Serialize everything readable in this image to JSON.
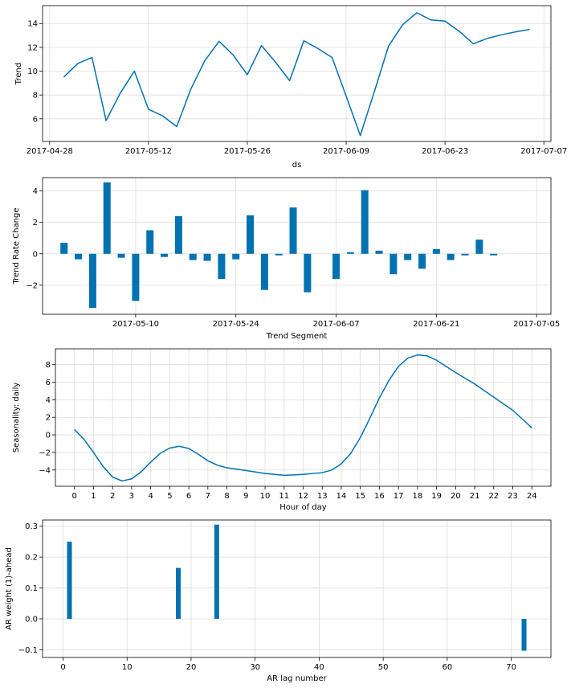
{
  "colors": {
    "series": "#0072b2",
    "grid": "#dcdcdc",
    "frame": "#000000"
  },
  "chart_data": [
    {
      "type": "line",
      "xlabel": "ds",
      "ylabel": "Trend",
      "x_is_date": true,
      "xlim": [
        "2017-04-27",
        "2017-07-08"
      ],
      "ylim": [
        4.1,
        15.5
      ],
      "xticks": [
        "2017-04-28",
        "2017-05-12",
        "2017-05-26",
        "2017-06-09",
        "2017-06-23",
        "2017-07-07"
      ],
      "xticklabels": [
        "2017-04-28",
        "2017-05-12",
        "2017-05-26",
        "2017-06-09",
        "2017-06-23",
        "2017-07-07"
      ],
      "yticks": [
        6,
        8,
        10,
        12,
        14
      ],
      "yticklabels": [
        "6",
        "8",
        "10",
        "12",
        "14"
      ],
      "grid": true,
      "series": [
        {
          "x": [
            "2017-04-30",
            "2017-05-02",
            "2017-05-04",
            "2017-05-06",
            "2017-05-08",
            "2017-05-10",
            "2017-05-12",
            "2017-05-14",
            "2017-05-16",
            "2017-05-18",
            "2017-05-20",
            "2017-05-22",
            "2017-05-24",
            "2017-05-26",
            "2017-05-28",
            "2017-05-30",
            "2017-06-01",
            "2017-06-03",
            "2017-06-05",
            "2017-06-07",
            "2017-06-09",
            "2017-06-11",
            "2017-06-13",
            "2017-06-15",
            "2017-06-17",
            "2017-06-19",
            "2017-06-21",
            "2017-06-23",
            "2017-06-25",
            "2017-06-27",
            "2017-06-29",
            "2017-07-01",
            "2017-07-03",
            "2017-07-05"
          ],
          "y": [
            9.5,
            10.65,
            11.15,
            5.85,
            8.15,
            10.0,
            6.8,
            6.25,
            5.35,
            8.5,
            10.9,
            12.5,
            11.35,
            9.7,
            12.15,
            10.75,
            9.2,
            12.55,
            11.9,
            11.15,
            7.9,
            4.6,
            8.3,
            12.1,
            13.9,
            14.9,
            14.3,
            14.2,
            13.35,
            12.3,
            12.75,
            13.05,
            13.3,
            13.5
          ]
        }
      ]
    },
    {
      "type": "bar",
      "xlabel": "Trend Segment",
      "ylabel": "Trend Rate Change",
      "x_is_date": true,
      "xlim": [
        "2017-04-27",
        "2017-07-07"
      ],
      "ylim": [
        -3.85,
        4.85
      ],
      "xticks": [
        "2017-05-10",
        "2017-05-24",
        "2017-06-07",
        "2017-06-21",
        "2017-07-05"
      ],
      "xticklabels": [
        "2017-05-10",
        "2017-05-24",
        "2017-06-07",
        "2017-06-21",
        "2017-07-05"
      ],
      "yticks": [
        -2,
        0,
        2,
        4
      ],
      "yticklabels": [
        "−2",
        "0",
        "2",
        "4"
      ],
      "grid": true,
      "series": [
        {
          "x": [
            "2017-04-30",
            "2017-05-02",
            "2017-05-04",
            "2017-05-06",
            "2017-05-08",
            "2017-05-10",
            "2017-05-12",
            "2017-05-14",
            "2017-05-16",
            "2017-05-18",
            "2017-05-20",
            "2017-05-22",
            "2017-05-24",
            "2017-05-26",
            "2017-05-28",
            "2017-05-30",
            "2017-06-01",
            "2017-06-03",
            "2017-06-05",
            "2017-06-07",
            "2017-06-09",
            "2017-06-11",
            "2017-06-13",
            "2017-06-15",
            "2017-06-17",
            "2017-06-19",
            "2017-06-21",
            "2017-06-23",
            "2017-06-25",
            "2017-06-27",
            "2017-06-29",
            "2017-07-01"
          ],
          "y": [
            0.7,
            -0.35,
            -3.45,
            4.55,
            -0.25,
            -3.0,
            1.5,
            -0.2,
            2.4,
            -0.4,
            -0.45,
            -1.6,
            -0.35,
            2.45,
            -2.3,
            -0.1,
            2.95,
            -2.45,
            0,
            -1.6,
            0.1,
            4.05,
            0.2,
            -1.3,
            -0.4,
            -0.95,
            0.3,
            -0.4,
            -0.1,
            0.9,
            -0.1,
            0
          ]
        }
      ]
    },
    {
      "type": "line",
      "xlabel": "Hour of day",
      "ylabel": "Seasonality: daily",
      "xlim": [
        -1.0,
        25.0
      ],
      "ylim": [
        -5.85,
        9.8
      ],
      "xticks": [
        0,
        1,
        2,
        3,
        4,
        5,
        6,
        7,
        8,
        9,
        10,
        11,
        12,
        13,
        14,
        15,
        16,
        17,
        18,
        19,
        20,
        21,
        22,
        23,
        24
      ],
      "xticklabels": [
        "0",
        "1",
        "2",
        "3",
        "4",
        "5",
        "6",
        "7",
        "8",
        "9",
        "10",
        "11",
        "12",
        "13",
        "14",
        "15",
        "16",
        "17",
        "18",
        "19",
        "20",
        "21",
        "22",
        "23",
        "24"
      ],
      "yticks": [
        -4,
        -2,
        0,
        2,
        4,
        6,
        8
      ],
      "yticklabels": [
        "−4",
        "−2",
        "0",
        "2",
        "4",
        "6",
        "8"
      ],
      "grid": true,
      "series": [
        {
          "x": [
            0,
            0.5,
            1,
            1.5,
            2,
            2.5,
            3,
            3.5,
            4,
            4.5,
            5,
            5.5,
            6,
            6.5,
            7,
            7.5,
            8,
            9,
            10,
            11,
            12,
            13,
            13.5,
            14,
            14.5,
            15,
            15.5,
            16,
            16.5,
            17,
            17.5,
            18,
            18.5,
            19,
            20,
            21,
            22,
            23,
            24
          ],
          "y": [
            0.6,
            -0.5,
            -2.0,
            -3.6,
            -4.8,
            -5.25,
            -5.0,
            -4.2,
            -3.1,
            -2.1,
            -1.5,
            -1.3,
            -1.55,
            -2.2,
            -2.95,
            -3.45,
            -3.75,
            -4.05,
            -4.4,
            -4.6,
            -4.5,
            -4.3,
            -4.0,
            -3.3,
            -2.1,
            -0.3,
            1.9,
            4.2,
            6.2,
            7.8,
            8.75,
            9.1,
            9.0,
            8.5,
            7.1,
            5.8,
            4.3,
            2.8,
            0.8
          ]
        }
      ]
    },
    {
      "type": "bar",
      "xlabel": "AR lag number",
      "ylabel": "AR weight (1)-ahead",
      "xlim": [
        -3.2,
        76.2
      ],
      "ylim": [
        -0.125,
        0.32
      ],
      "xticks": [
        0,
        10,
        20,
        30,
        40,
        50,
        60,
        70
      ],
      "xticklabels": [
        "0",
        "10",
        "20",
        "30",
        "40",
        "50",
        "60",
        "70"
      ],
      "yticks": [
        -0.1,
        0.0,
        0.1,
        0.2,
        0.3
      ],
      "yticklabels": [
        "−0.1",
        "0.0",
        "0.1",
        "0.2",
        "0.3"
      ],
      "grid": true,
      "series": [
        {
          "x": [
            1,
            18,
            24,
            72
          ],
          "y": [
            0.25,
            0.165,
            0.305,
            -0.103
          ]
        }
      ]
    }
  ]
}
